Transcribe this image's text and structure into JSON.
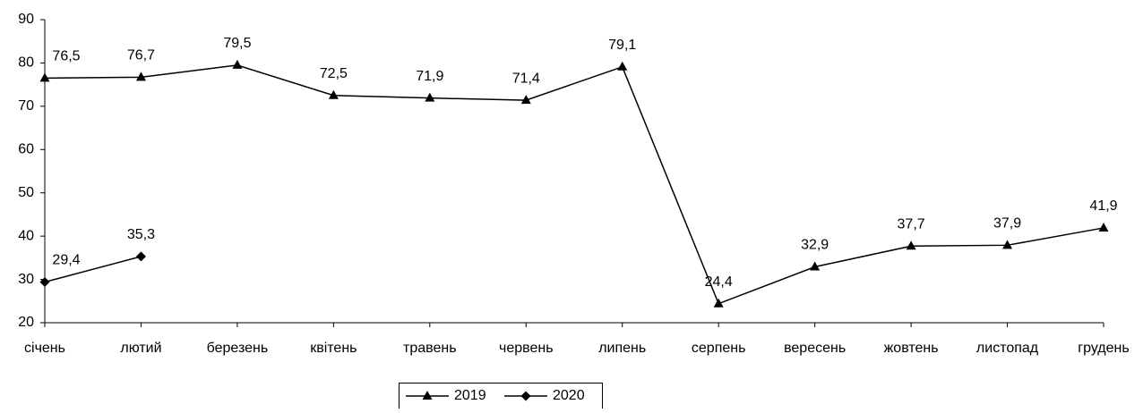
{
  "chart_data": {
    "type": "line",
    "categories": [
      "січень",
      "лютий",
      "березень",
      "квітень",
      "травень",
      "червень",
      "липень",
      "серпень",
      "вересень",
      "жовтень",
      "листопад",
      "грудень"
    ],
    "series": [
      {
        "name": "2019",
        "color": "#000000",
        "marker": "triangle",
        "values": [
          76.5,
          76.7,
          79.5,
          72.5,
          71.9,
          71.4,
          79.1,
          24.4,
          32.9,
          37.7,
          37.9,
          41.9
        ],
        "value_labels": [
          "76,5",
          "76,7",
          "79,5",
          "72,5",
          "71,9",
          "71,4",
          "79,1",
          "24,4",
          "32,9",
          "37,7",
          "37,9",
          "41,9"
        ]
      },
      {
        "name": "2020",
        "color": "#000000",
        "marker": "diamond",
        "values": [
          29.4,
          35.3,
          null,
          null,
          null,
          null,
          null,
          null,
          null,
          null,
          null,
          null
        ],
        "value_labels": [
          "29,4",
          "35,3",
          null,
          null,
          null,
          null,
          null,
          null,
          null,
          null,
          null,
          null
        ]
      }
    ],
    "ylim": [
      20,
      90
    ],
    "yticks": [
      20,
      30,
      40,
      50,
      60,
      70,
      80,
      90
    ],
    "grid": false,
    "legend": "bottom"
  }
}
